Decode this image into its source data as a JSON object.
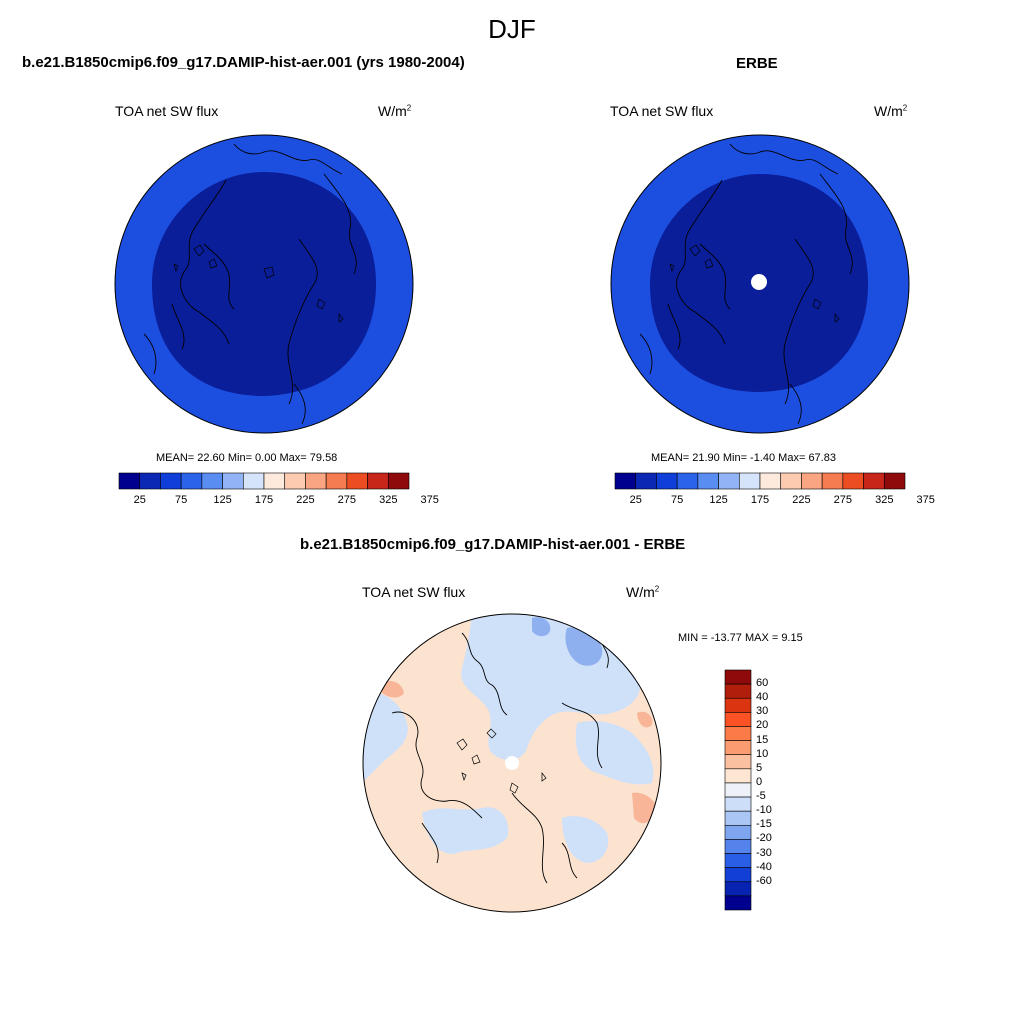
{
  "figure": {
    "season": "DJF"
  },
  "panel_model": {
    "title": "b.e21.B1850cmip6.f09_g17.DAMIP-hist-aer.001 (yrs 1980-2004)",
    "variable": "TOA net SW flux",
    "units_base": "W/m",
    "units_exp": "2",
    "stats": "MEAN=  22.60  Min=   0.00  Max=  79.58",
    "colorbar_colors": [
      "#00008f",
      "#0a28b4",
      "#0f3fd8",
      "#2b63ea",
      "#5a8df2",
      "#92b4f6",
      "#d6e4fb",
      "#fdeadd",
      "#fccbb0",
      "#f9a581",
      "#f57c51",
      "#ec4d22",
      "#c9261a",
      "#8f0a0a"
    ],
    "colorbar_ticks": [
      "25",
      "75",
      "125",
      "175",
      "225",
      "275",
      "325",
      "375"
    ]
  },
  "panel_obs": {
    "title": "ERBE",
    "variable": "TOA net SW flux",
    "units_base": "W/m",
    "units_exp": "2",
    "stats": "MEAN=  21.90  Min=  -1.40  Max=  67.83",
    "colorbar_colors": [
      "#00008f",
      "#0a28b4",
      "#0f3fd8",
      "#2b63ea",
      "#5a8df2",
      "#92b4f6",
      "#d6e4fb",
      "#fdeadd",
      "#fccbb0",
      "#f9a581",
      "#f57c51",
      "#ec4d22",
      "#c9261a",
      "#8f0a0a"
    ],
    "colorbar_ticks": [
      "25",
      "75",
      "125",
      "175",
      "225",
      "275",
      "325",
      "375"
    ]
  },
  "panel_diff": {
    "title": "b.e21.B1850cmip6.f09_g17.DAMIP-hist-aer.001 - ERBE",
    "variable": "TOA net SW flux",
    "units_base": "W/m",
    "units_exp": "2",
    "stats": "MIN = -13.77 MAX =   9.15",
    "colorbar_colors": [
      "#8f0a0a",
      "#b21e0c",
      "#db3410",
      "#fa5224",
      "#fb7a47",
      "#fb9b71",
      "#fbc09f",
      "#fde6d2",
      "#eef2f8",
      "#cddff8",
      "#a9c6f4",
      "#7ea6ef",
      "#5383eb",
      "#2b5ee6",
      "#123fd6",
      "#0723b0",
      "#00008f"
    ],
    "colorbar_labels": [
      "60",
      "40",
      "30",
      "20",
      "15",
      "10",
      "5",
      "0",
      "-5",
      "-10",
      "-15",
      "-20",
      "-30",
      "-40",
      "-60"
    ]
  },
  "colors": {
    "model_outer": "#1c4fe0",
    "model_inner": "#0a1e9a",
    "diff_base": "#fce3d0",
    "diff_negative": "#cfe0f9",
    "diff_negative_strong": "#8fb0ee",
    "diff_positive": "#f8b597"
  }
}
